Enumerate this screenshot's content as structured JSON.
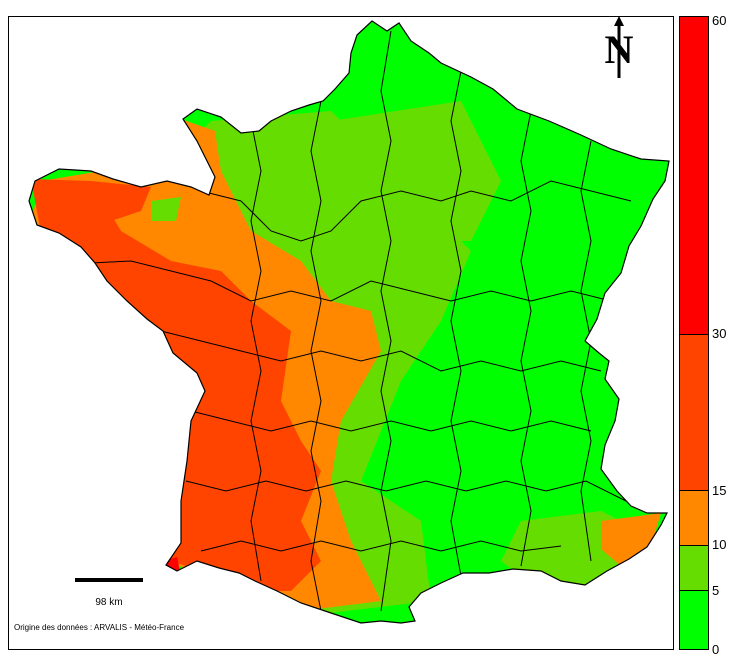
{
  "map": {
    "north_label": "N",
    "scale_label": "98 km",
    "source_note": "Origine des données : ARVALIS - Météo-France"
  },
  "legend": {
    "classes": [
      {
        "from": 0,
        "to": 5,
        "color": "#00FF00"
      },
      {
        "from": 5,
        "to": 10,
        "color": "#66DD00"
      },
      {
        "from": 10,
        "to": 15,
        "color": "#FF8800"
      },
      {
        "from": 15,
        "to": 30,
        "color": "#FF4400"
      },
      {
        "from": 30,
        "to": 60,
        "color": "#FF0000"
      }
    ],
    "ticks": [
      "60",
      "30",
      "15",
      "10",
      "5",
      "0"
    ]
  }
}
